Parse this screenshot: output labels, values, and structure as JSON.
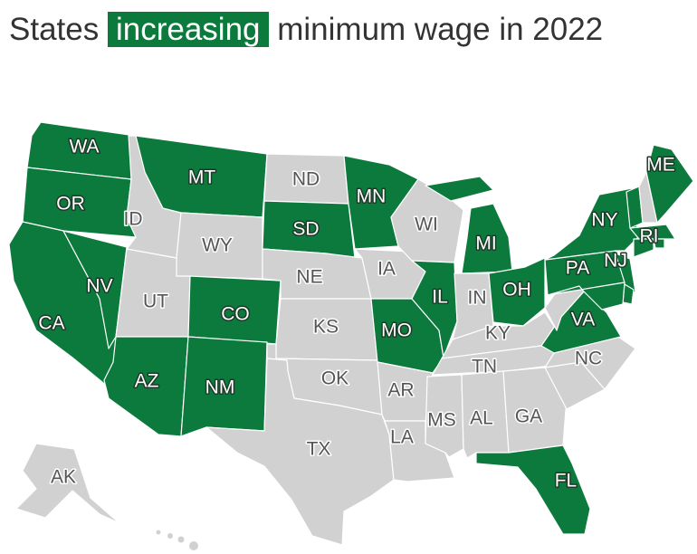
{
  "title": {
    "before": "States",
    "highlight": "increasing",
    "after": "minimum wage in 2022"
  },
  "colors": {
    "increasing": "#0b7a3c",
    "other": "#d1d1d1"
  },
  "states": [
    {
      "abbr": "WA",
      "increasing": true
    },
    {
      "abbr": "OR",
      "increasing": true
    },
    {
      "abbr": "CA",
      "increasing": true
    },
    {
      "abbr": "NV",
      "increasing": true
    },
    {
      "abbr": "ID",
      "increasing": false
    },
    {
      "abbr": "MT",
      "increasing": true
    },
    {
      "abbr": "WY",
      "increasing": false
    },
    {
      "abbr": "UT",
      "increasing": false
    },
    {
      "abbr": "AZ",
      "increasing": true
    },
    {
      "abbr": "CO",
      "increasing": true
    },
    {
      "abbr": "NM",
      "increasing": true
    },
    {
      "abbr": "ND",
      "increasing": false
    },
    {
      "abbr": "SD",
      "increasing": true
    },
    {
      "abbr": "NE",
      "increasing": false
    },
    {
      "abbr": "KS",
      "increasing": false
    },
    {
      "abbr": "OK",
      "increasing": false
    },
    {
      "abbr": "TX",
      "increasing": false
    },
    {
      "abbr": "MN",
      "increasing": true
    },
    {
      "abbr": "IA",
      "increasing": false
    },
    {
      "abbr": "MO",
      "increasing": true
    },
    {
      "abbr": "AR",
      "increasing": false
    },
    {
      "abbr": "LA",
      "increasing": false
    },
    {
      "abbr": "WI",
      "increasing": false
    },
    {
      "abbr": "IL",
      "increasing": true
    },
    {
      "abbr": "MI",
      "increasing": true
    },
    {
      "abbr": "IN",
      "increasing": false
    },
    {
      "abbr": "OH",
      "increasing": true
    },
    {
      "abbr": "KY",
      "increasing": false
    },
    {
      "abbr": "TN",
      "increasing": false
    },
    {
      "abbr": "MS",
      "increasing": false
    },
    {
      "abbr": "AL",
      "increasing": false
    },
    {
      "abbr": "GA",
      "increasing": false
    },
    {
      "abbr": "FL",
      "increasing": true
    },
    {
      "abbr": null,
      "increasing": false
    },
    {
      "abbr": "NC",
      "increasing": false
    },
    {
      "abbr": "VA",
      "increasing": true
    },
    {
      "abbr": null,
      "increasing": false
    },
    {
      "abbr": "PA",
      "increasing": true
    },
    {
      "abbr": "NY",
      "increasing": true
    },
    {
      "abbr": "NJ",
      "increasing": true
    },
    {
      "abbr": null,
      "increasing": true
    },
    {
      "abbr": null,
      "increasing": true
    },
    {
      "abbr": null,
      "increasing": true
    },
    {
      "abbr": null,
      "increasing": false
    },
    {
      "abbr": "ME",
      "increasing": true
    },
    {
      "abbr": null,
      "increasing": true
    },
    {
      "abbr": "RI",
      "increasing": true
    },
    {
      "abbr": null,
      "increasing": true
    },
    {
      "abbr": "AK",
      "increasing": false
    }
  ]
}
